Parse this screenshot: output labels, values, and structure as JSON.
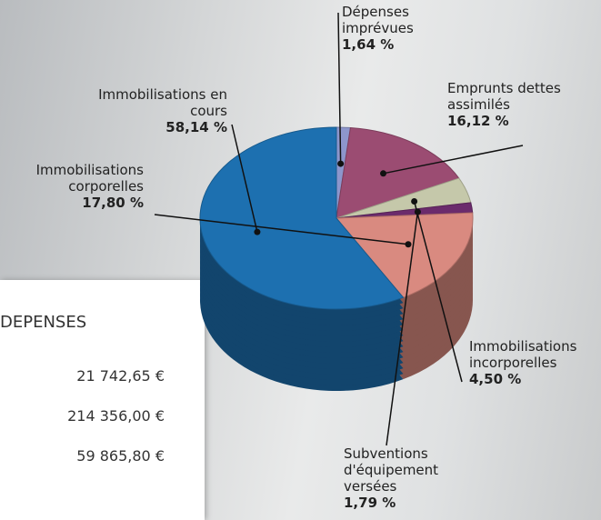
{
  "chart_data": {
    "type": "pie",
    "categories": [
      "Dépenses imprévues",
      "Emprunts dettes assimilés",
      "Immobilisations incorporelles",
      "Subventions d'équipement versées",
      "Immobilisations corporelles",
      "Immobilisations en cours"
    ],
    "values": [
      1.64,
      16.12,
      4.5,
      1.79,
      17.8,
      58.14
    ],
    "value_labels": [
      "1,64 %",
      "16,12 %",
      "4,50 %",
      "1,79 %",
      "17,80 %",
      "58,14 %"
    ],
    "colors": [
      "#8d96cc",
      "#9b4c72",
      "#c5c8aa",
      "#6b2b6c",
      "#d98a80",
      "#1d70b0"
    ]
  },
  "table": {
    "title": "DEPENSES",
    "rows": [
      "21 742,65 €",
      "214 356,00 €",
      "59 865,80 €"
    ]
  }
}
